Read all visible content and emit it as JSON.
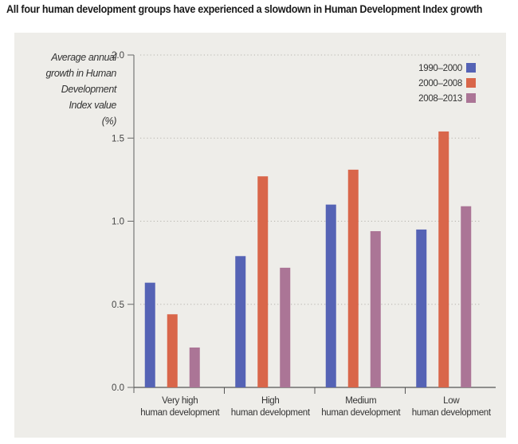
{
  "title": "All four human development groups have experienced a slowdown in Human Development Index growth",
  "chart_data": {
    "type": "bar",
    "title": "All four human development groups have experienced a slowdown in Human Development Index growth",
    "ylabel_lines": [
      "Average annual",
      "growth in Human",
      "Development",
      "Index value",
      "(%)"
    ],
    "xlabel": "",
    "categories": [
      [
        "Very high",
        "human development"
      ],
      [
        "High",
        "human development"
      ],
      [
        "Medium",
        "human development"
      ],
      [
        "Low",
        "human development"
      ]
    ],
    "series": [
      {
        "name": "1990–2000",
        "color": "#5563b5",
        "values": [
          0.63,
          0.79,
          1.1,
          0.95
        ]
      },
      {
        "name": "2000–2008",
        "color": "#d9664a",
        "values": [
          0.44,
          1.27,
          1.31,
          1.54
        ]
      },
      {
        "name": "2008–2013",
        "color": "#ab7596",
        "values": [
          0.24,
          0.72,
          0.94,
          1.09
        ]
      }
    ],
    "ylim": [
      0,
      2.0
    ],
    "yticks": [
      "0.0",
      "0.5",
      "1.0",
      "1.5",
      "2.0"
    ],
    "ytick_values": [
      0,
      0.5,
      1.0,
      1.5,
      2.0
    ],
    "grid": "dotted horizontal",
    "legend_position": "top-right"
  }
}
